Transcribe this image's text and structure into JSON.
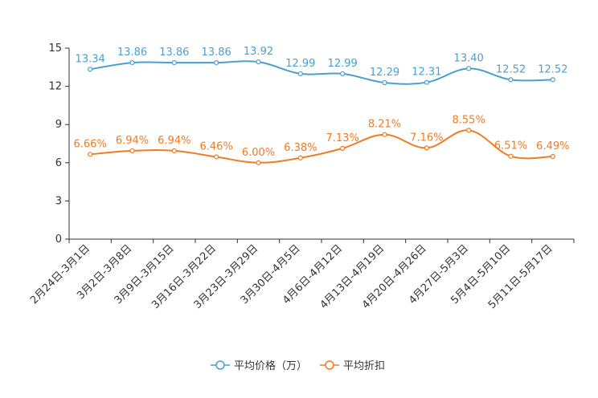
{
  "chart_data": {
    "type": "line",
    "categories": [
      "2月24日-3月1日",
      "3月2日-3月8日",
      "3月9日-3月15日",
      "3月16日-3月22日",
      "3月23日-3月29日",
      "3月30日-4月5日",
      "4月6日-4月12日",
      "4月13日-4月19日",
      "4月20日-4月26日",
      "4月27日-5月3日",
      "5月4日-5月10日",
      "5月11日-5月17日"
    ],
    "series": [
      {
        "name": "平均价格（万）",
        "color": "#4a9fd0",
        "values": [
          13.34,
          13.86,
          13.86,
          13.86,
          13.92,
          12.99,
          12.99,
          12.29,
          12.31,
          13.4,
          12.52,
          12.52
        ],
        "labels": [
          "13.34",
          "13.86",
          "13.86",
          "13.86",
          "13.92",
          "12.99",
          "12.99",
          "12.29",
          "12.31",
          "13.40",
          "12.52",
          "12.52"
        ]
      },
      {
        "name": "平均折扣",
        "color": "#f07b22",
        "values": [
          6.66,
          6.94,
          6.94,
          6.46,
          6.0,
          6.38,
          7.13,
          8.21,
          7.16,
          8.55,
          6.51,
          6.49
        ],
        "labels": [
          "6.66%",
          "6.94%",
          "6.94%",
          "6.46%",
          "6.00%",
          "6.38%",
          "7.13%",
          "8.21%",
          "7.16%",
          "8.55%",
          "6.51%",
          "6.49%"
        ]
      }
    ],
    "yticks": [
      "0",
      "3",
      "6",
      "9",
      "12",
      "15"
    ],
    "ylim": [
      0,
      15
    ],
    "title": "",
    "xlabel": "",
    "ylabel": "",
    "legend_position": "bottom-center"
  }
}
